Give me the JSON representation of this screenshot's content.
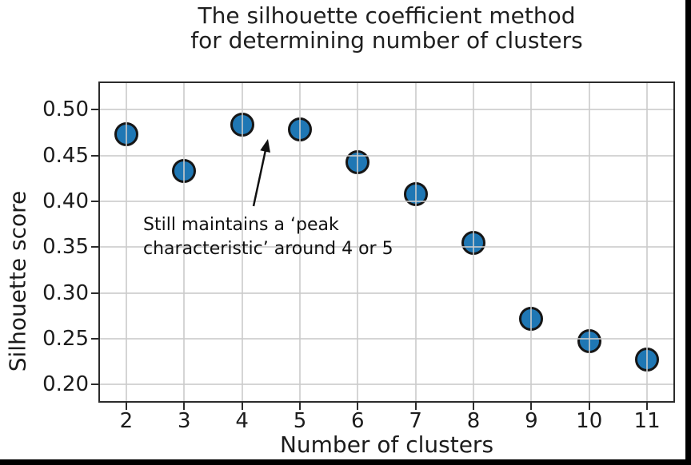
{
  "figure": {
    "title_line1": "The silhouette coefficient method",
    "title_line2": "for determining number of clusters"
  },
  "annotation": {
    "line1": "Still maintains a ‘peak",
    "line2": "characteristic’ around 4 or 5"
  },
  "chart_data": {
    "type": "scatter",
    "title": "The silhouette coefficient method for determining number of clusters",
    "xlabel": "Number of clusters",
    "ylabel": "Silhouette score",
    "x": [
      2,
      3,
      4,
      5,
      6,
      7,
      8,
      9,
      10,
      11
    ],
    "y": [
      0.473,
      0.433,
      0.484,
      0.478,
      0.443,
      0.408,
      0.355,
      0.272,
      0.247,
      0.227
    ],
    "xticks": [
      2,
      3,
      4,
      5,
      6,
      7,
      8,
      9,
      10,
      11
    ],
    "xtick_labels": [
      "2",
      "3",
      "4",
      "5",
      "6",
      "7",
      "8",
      "9",
      "10",
      "11"
    ],
    "yticks": [
      0.5,
      0.45,
      0.4,
      0.35,
      0.3,
      0.25,
      0.2
    ],
    "ytick_labels": [
      "0.50",
      "0.45",
      "0.40",
      "0.35",
      "0.30",
      "0.25",
      "0.20"
    ],
    "xlim": [
      1.545,
      11.455
    ],
    "ylim": [
      0.182,
      0.529
    ],
    "grid": true,
    "grid_over_points": true,
    "legend": null,
    "annotation_text": "Still maintains a ‘peak characteristic’ around 4 or 5",
    "marker_color": "#1f77b4",
    "marker_edge_color": "#161616"
  },
  "colors": {
    "grid": "#cbcbcb",
    "spine": "#2b2b2b",
    "text": "#1c1c1c",
    "frame": "#000000",
    "background": "#ffffff"
  }
}
